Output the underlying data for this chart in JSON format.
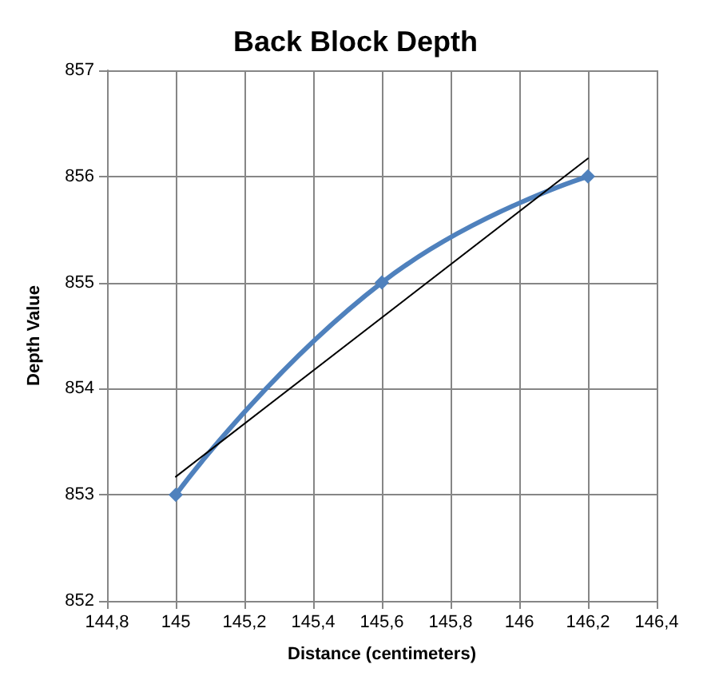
{
  "chart_data": {
    "type": "line",
    "title": "Back Block Depth",
    "xlabel": "Distance (centimeters)",
    "ylabel": "Depth Value",
    "xlim": [
      144.8,
      146.4
    ],
    "xticks": [
      {
        "value": 144.8,
        "label": "144,8"
      },
      {
        "value": 145,
        "label": "145"
      },
      {
        "value": 145.2,
        "label": "145,2"
      },
      {
        "value": 145.4,
        "label": "145,4"
      },
      {
        "value": 145.6,
        "label": "145,6"
      },
      {
        "value": 145.8,
        "label": "145,8"
      },
      {
        "value": 146,
        "label": "146"
      },
      {
        "value": 146.2,
        "label": "146,2"
      },
      {
        "value": 146.4,
        "label": "146,4"
      }
    ],
    "ylim": [
      852,
      857
    ],
    "yticks": [
      852,
      853,
      854,
      855,
      856,
      857
    ],
    "grid": true,
    "marker": "diamond",
    "series": [
      {
        "color": "#4f81bd",
        "x": [
          145,
          145.6,
          146.2
        ],
        "values": [
          853,
          855,
          856
        ]
      },
      {
        "type": "line",
        "color": "#000000",
        "marker": "none",
        "x": [
          145,
          146.2
        ],
        "values": [
          853.17,
          856.17
        ]
      }
    ]
  }
}
